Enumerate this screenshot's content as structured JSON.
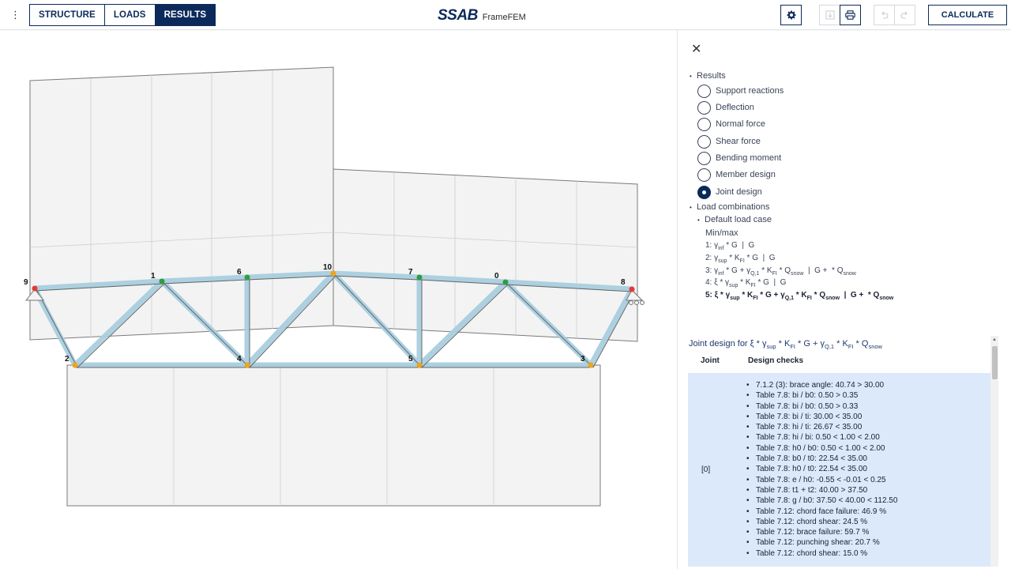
{
  "topbar": {
    "menu_icon": "kebab-menu-icon",
    "tabs": [
      {
        "label": "STRUCTURE",
        "active": false
      },
      {
        "label": "LOADS",
        "active": false
      },
      {
        "label": "RESULTS",
        "active": true
      }
    ],
    "brand_logo": "SSAB",
    "brand_name": "FrameFEM",
    "settings_icon": "gear-icon",
    "export_icon": "download-icon",
    "print_icon": "printer-icon",
    "undo_icon": "undo-icon",
    "redo_icon": "redo-icon",
    "calculate_label": "CALCULATE"
  },
  "canvas": {
    "joint_labels": [
      "9",
      "1",
      "6",
      "10",
      "7",
      "0",
      "8",
      "2",
      "4",
      "5",
      "3"
    ],
    "colors": {
      "member": "#a9cfe0",
      "support_node": "#e53935",
      "top_node": "#2e9e3e",
      "bottom_node": "#f0a41a",
      "frame": "#6e6e6e"
    }
  },
  "panel": {
    "close_icon": "close-icon",
    "results_heading": "Results",
    "results_options": [
      {
        "label": "Support reactions",
        "selected": false
      },
      {
        "label": "Deflection",
        "selected": false
      },
      {
        "label": "Normal force",
        "selected": false
      },
      {
        "label": "Shear force",
        "selected": false
      },
      {
        "label": "Bending moment",
        "selected": false
      },
      {
        "label": "Member design",
        "selected": false
      },
      {
        "label": "Joint design",
        "selected": true
      }
    ],
    "load_combinations_heading": "Load combinations",
    "default_load_case": "Default load case",
    "minmax": "Min/max",
    "joint_design_title": "Joint design for",
    "table_headers": {
      "joint": "Joint",
      "checks": "Design checks"
    },
    "row_index": "[0]",
    "checks": [
      "7.1.2 (3): brace angle: 40.74 > 30.00",
      "Table 7.8: bi / b0: 0.50 > 0.35",
      "Table 7.8: bi / b0: 0.50 > 0.33",
      "Table 7.8: bi / ti: 30.00 < 35.00",
      "Table 7.8: hi / ti: 26.67 < 35.00",
      "Table 7.8: hi / bi: 0.50 < 1.00 < 2.00",
      "Table 7.8: h0 / b0: 0.50 < 1.00 < 2.00",
      "Table 7.8: b0 / t0: 22.54 < 35.00",
      "Table 7.8: h0 / t0: 22.54 < 35.00",
      "Table 7.8: e / h0: -0.55 < -0.01 < 0.25",
      "Table 7.8: t1 + t2: 40.00 > 37.50",
      "Table 7.8: g / b0: 37.50 < 40.00 < 112.50",
      "Table 7.12: chord face failure: 46.9 %",
      "Table 7.12: chord shear: 24.5 %",
      "Table 7.12: brace failure: 59.7 %",
      "Table 7.12: punching shear: 20.7 %",
      "Table 7.12: chord shear: 15.0 %"
    ]
  }
}
